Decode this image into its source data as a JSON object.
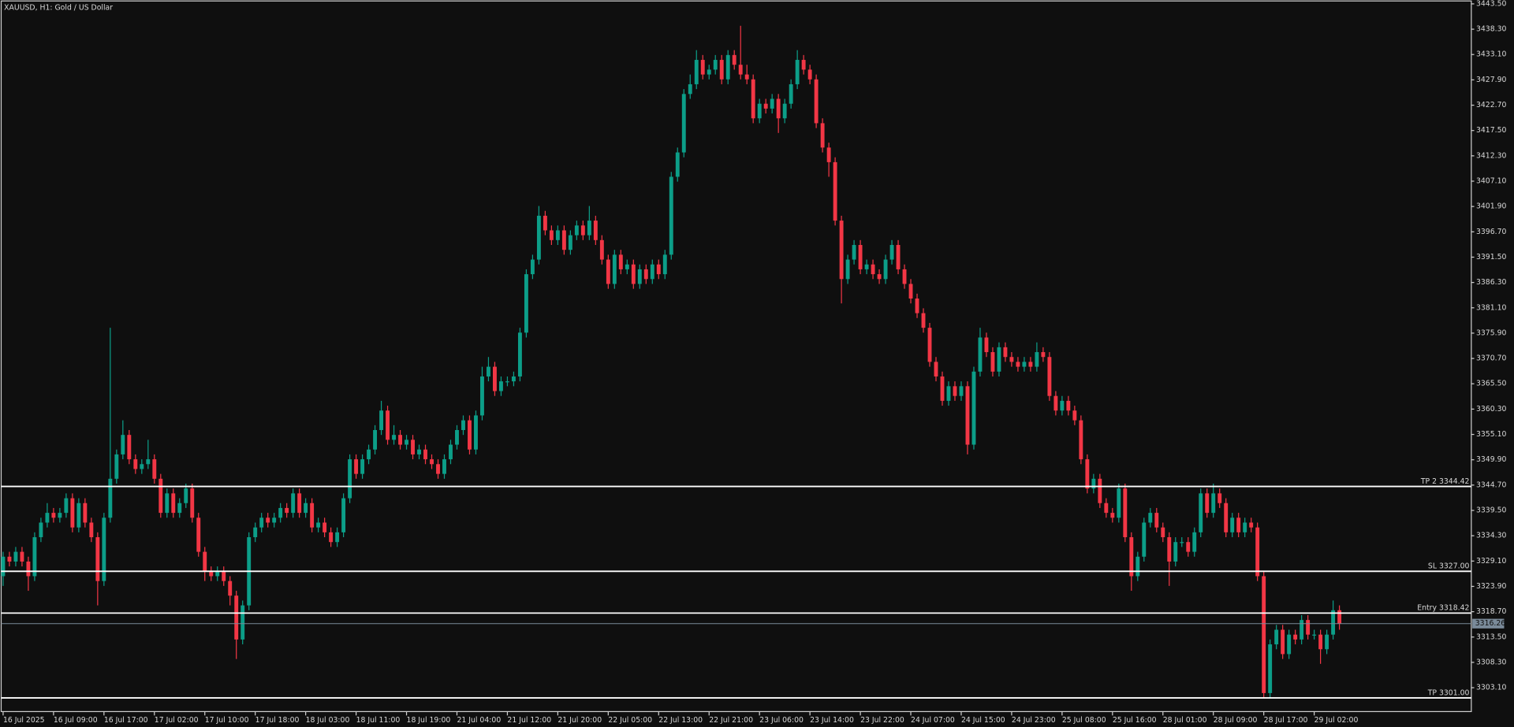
{
  "chart_data": {
    "type": "candlestick",
    "title": "XAUUSD, H1:  Gold / US Dollar",
    "up_color": "#0c9e88",
    "down_color": "#f23645",
    "level_color": "#ffffff",
    "last_color": "#7a8a99",
    "ylim": [
      3298.0,
      3443.9
    ],
    "yticks": [
      {
        "value": 3443.5,
        "label": "3443.50"
      },
      {
        "value": 3438.3,
        "label": "3438.30"
      },
      {
        "value": 3433.1,
        "label": "3433.10"
      },
      {
        "value": 3427.9,
        "label": "3427.90"
      },
      {
        "value": 3422.7,
        "label": "3422.70"
      },
      {
        "value": 3417.5,
        "label": "3417.50"
      },
      {
        "value": 3412.3,
        "label": "3412.30"
      },
      {
        "value": 3407.1,
        "label": "3407.10"
      },
      {
        "value": 3401.9,
        "label": "3401.90"
      },
      {
        "value": 3396.7,
        "label": "3396.70"
      },
      {
        "value": 3391.5,
        "label": "3391.50"
      },
      {
        "value": 3386.3,
        "label": "3386.30"
      },
      {
        "value": 3381.1,
        "label": "3381.10"
      },
      {
        "value": 3375.9,
        "label": "3375.90"
      },
      {
        "value": 3370.7,
        "label": "3370.70"
      },
      {
        "value": 3365.5,
        "label": "3365.50"
      },
      {
        "value": 3360.3,
        "label": "3360.30"
      },
      {
        "value": 3355.1,
        "label": "3355.10"
      },
      {
        "value": 3349.9,
        "label": "3349.90"
      },
      {
        "value": 3344.7,
        "label": "3344.70"
      },
      {
        "value": 3339.5,
        "label": "3339.50"
      },
      {
        "value": 3334.3,
        "label": "3334.30"
      },
      {
        "value": 3329.1,
        "label": "3329.10"
      },
      {
        "value": 3323.9,
        "label": "3323.90"
      },
      {
        "value": 3318.7,
        "label": "3318.70"
      },
      {
        "value": 3313.5,
        "label": "3313.50"
      },
      {
        "value": 3308.3,
        "label": "3308.30"
      },
      {
        "value": 3303.1,
        "label": "3303.10"
      }
    ],
    "levels": [
      {
        "label": "TP 2 3344.42",
        "value": 3344.42
      },
      {
        "label": "SL 3327.00",
        "value": 3327.0
      },
      {
        "label": "Entry 3318.42",
        "value": 3318.42
      },
      {
        "label": "TP 3301.00",
        "value": 3301.0
      }
    ],
    "last_price": 3316.26,
    "categories": [
      "16 Jul 2025",
      null,
      null,
      null,
      null,
      null,
      null,
      null,
      "16 Jul 09:00",
      null,
      null,
      null,
      null,
      null,
      null,
      null,
      "16 Jul 17:00",
      null,
      null,
      null,
      null,
      null,
      null,
      null,
      "17 Jul 02:00",
      null,
      null,
      null,
      null,
      null,
      null,
      null,
      "17 Jul 10:00",
      null,
      null,
      null,
      null,
      null,
      null,
      null,
      "17 Jul 18:00",
      null,
      null,
      null,
      null,
      null,
      null,
      null,
      "18 Jul 03:00",
      null,
      null,
      null,
      null,
      null,
      null,
      null,
      "18 Jul 11:00",
      null,
      null,
      null,
      null,
      null,
      null,
      null,
      "18 Jul 19:00",
      null,
      null,
      null,
      null,
      null,
      null,
      null,
      "21 Jul 04:00",
      null,
      null,
      null,
      null,
      null,
      null,
      null,
      "21 Jul 12:00",
      null,
      null,
      null,
      null,
      null,
      null,
      null,
      "21 Jul 20:00",
      null,
      null,
      null,
      null,
      null,
      null,
      null,
      "22 Jul 05:00",
      null,
      null,
      null,
      null,
      null,
      null,
      null,
      "22 Jul 13:00",
      null,
      null,
      null,
      null,
      null,
      null,
      null,
      "22 Jul 21:00",
      null,
      null,
      null,
      null,
      null,
      null,
      null,
      "23 Jul 06:00",
      null,
      null,
      null,
      null,
      null,
      null,
      null,
      "23 Jul 14:00",
      null,
      null,
      null,
      null,
      null,
      null,
      null,
      "23 Jul 22:00",
      null,
      null,
      null,
      null,
      null,
      null,
      null,
      "24 Jul 07:00",
      null,
      null,
      null,
      null,
      null,
      null,
      null,
      "24 Jul 15:00",
      null,
      null,
      null,
      null,
      null,
      null,
      null,
      "24 Jul 23:00",
      null,
      null,
      null,
      null,
      null,
      null,
      null,
      "25 Jul 08:00",
      null,
      null,
      null,
      null,
      null,
      null,
      null,
      "25 Jul 16:00",
      null,
      null,
      null,
      null,
      null,
      null,
      null,
      "28 Jul 01:00",
      null,
      null,
      null,
      null,
      null,
      null,
      null,
      "28 Jul 09:00",
      null,
      null,
      null,
      null,
      null,
      null,
      null,
      "28 Jul 17:00",
      null,
      null,
      null,
      null,
      null,
      null,
      null,
      "29 Jul 02:00",
      null,
      null,
      null,
      null
    ],
    "open": [
      3326,
      3330,
      3329,
      3331,
      3329,
      3326,
      3334,
      3337,
      3339,
      3338,
      3339,
      3342,
      3336,
      3341,
      3337,
      3334,
      3325,
      3338,
      3346,
      3351,
      3355,
      3350,
      3348,
      3349,
      3350,
      3346,
      3339,
      3343,
      3339,
      3341,
      3344,
      3338,
      3331,
      3327,
      3326,
      3327,
      3325,
      3322,
      3313,
      3320,
      3334,
      3336,
      3338,
      3337,
      3338,
      3340,
      3339,
      3343,
      3339,
      3341,
      3336,
      3337,
      3335,
      3333,
      3335,
      3342,
      3350,
      3347,
      3350,
      3352,
      3356,
      3360,
      3354,
      3355,
      3353,
      3354,
      3351,
      3352,
      3350,
      3349,
      3347,
      3350,
      3353,
      3356,
      3358,
      3352,
      3359,
      3367,
      3369,
      3364,
      3366,
      3366,
      3367,
      3376,
      3388,
      3391,
      3400,
      3397,
      3395,
      3397,
      3393,
      3396,
      3398,
      3396,
      3399,
      3395,
      3391,
      3386,
      3392,
      3389,
      3390,
      3386,
      3389,
      3387,
      3390,
      3388,
      3392,
      3408,
      3413,
      3425,
      3427,
      3432,
      3429,
      3430,
      3432,
      3428,
      3433,
      3431,
      3429,
      3428,
      3420,
      3423,
      3422,
      3424,
      3420,
      3423,
      3427,
      3432,
      3430,
      3428,
      3419,
      3414,
      3411,
      3399,
      3387,
      3391,
      3394,
      3389,
      3390,
      3388,
      3387,
      3391,
      3394,
      3389,
      3386,
      3383,
      3380,
      3377,
      3370,
      3367,
      3362,
      3365,
      3363,
      3365,
      3353,
      3368,
      3375,
      3372,
      3368,
      3373,
      3371,
      3370,
      3369,
      3370,
      3369,
      3372,
      3371,
      3363,
      3360,
      3362,
      3360,
      3358,
      3350,
      3344,
      3346,
      3341,
      3339,
      3338,
      3344,
      3334,
      3326,
      3330,
      3337,
      3339,
      3336,
      3334,
      3329,
      3333,
      3333,
      3331,
      3335,
      3343,
      3339,
      3343,
      3341,
      3335,
      3338,
      3335,
      3337,
      3336,
      3326,
      3302,
      3312,
      3315,
      3310,
      3314,
      3313,
      3317,
      3314,
      3314,
      3311,
      3314,
      3319
    ],
    "high": [
      3331,
      3331,
      3332,
      3332,
      3330,
      3335,
      3338,
      3341,
      3340,
      3340,
      3343,
      3343,
      3342,
      3342,
      3338,
      3335,
      3339,
      3377,
      3352,
      3358,
      3356,
      3351,
      3350,
      3354,
      3351,
      3347,
      3344,
      3344,
      3342,
      3345,
      3345,
      3339,
      3332,
      3328,
      3328,
      3328,
      3326,
      3323,
      3321,
      3335,
      3337,
      3339,
      3339,
      3339,
      3341,
      3341,
      3344,
      3344,
      3342,
      3342,
      3338,
      3338,
      3336,
      3336,
      3343,
      3351,
      3351,
      3351,
      3353,
      3357,
      3362,
      3361,
      3357,
      3356,
      3355,
      3355,
      3353,
      3353,
      3351,
      3350,
      3351,
      3354,
      3357,
      3359,
      3359,
      3360,
      3369,
      3371,
      3370,
      3367,
      3367,
      3368,
      3377,
      3389,
      3392,
      3402,
      3401,
      3398,
      3398,
      3398,
      3397,
      3399,
      3399,
      3402,
      3400,
      3396,
      3392,
      3393,
      3393,
      3391,
      3391,
      3390,
      3390,
      3391,
      3391,
      3393,
      3409,
      3414,
      3426,
      3429,
      3434,
      3433,
      3431,
      3433,
      3433,
      3434,
      3434,
      3439,
      3431,
      3429,
      3424,
      3424,
      3425,
      3425,
      3424,
      3428,
      3434,
      3433,
      3431,
      3429,
      3420,
      3415,
      3412,
      3400,
      3392,
      3395,
      3395,
      3391,
      3391,
      3389,
      3392,
      3395,
      3395,
      3390,
      3387,
      3384,
      3381,
      3378,
      3371,
      3368,
      3366,
      3366,
      3366,
      3366,
      3369,
      3377,
      3376,
      3373,
      3374,
      3374,
      3372,
      3371,
      3371,
      3371,
      3374,
      3373,
      3372,
      3364,
      3363,
      3363,
      3361,
      3359,
      3351,
      3347,
      3347,
      3342,
      3340,
      3345,
      3345,
      3335,
      3331,
      3338,
      3340,
      3340,
      3337,
      3335,
      3334,
      3334,
      3334,
      3336,
      3344,
      3344,
      3345,
      3344,
      3342,
      3339,
      3339,
      3338,
      3338,
      3337,
      3327,
      3313,
      3316,
      3316,
      3315,
      3315,
      3318,
      3318,
      3315,
      3315,
      3315,
      3321,
      3320
    ],
    "low": [
      3324,
      3328,
      3328,
      3328,
      3323,
      3325,
      3333,
      3336,
      3337,
      3337,
      3338,
      3335,
      3335,
      3336,
      3333,
      3320,
      3324,
      3337,
      3345,
      3350,
      3349,
      3347,
      3347,
      3348,
      3345,
      3338,
      3338,
      3338,
      3338,
      3340,
      3337,
      3330,
      3325,
      3325,
      3325,
      3324,
      3320,
      3309,
      3312,
      3319,
      3333,
      3335,
      3336,
      3336,
      3337,
      3338,
      3338,
      3338,
      3338,
      3335,
      3335,
      3334,
      3332,
      3332,
      3334,
      3341,
      3346,
      3346,
      3349,
      3351,
      3355,
      3353,
      3353,
      3352,
      3352,
      3350,
      3350,
      3349,
      3348,
      3346,
      3346,
      3349,
      3352,
      3355,
      3351,
      3351,
      3358,
      3366,
      3363,
      3363,
      3365,
      3365,
      3366,
      3375,
      3387,
      3390,
      3396,
      3394,
      3394,
      3392,
      3392,
      3395,
      3395,
      3395,
      3394,
      3390,
      3385,
      3385,
      3388,
      3388,
      3385,
      3385,
      3386,
      3386,
      3387,
      3387,
      3391,
      3407,
      3412,
      3424,
      3426,
      3428,
      3428,
      3429,
      3427,
      3427,
      3430,
      3428,
      3427,
      3419,
      3419,
      3421,
      3421,
      3417,
      3419,
      3422,
      3426,
      3429,
      3427,
      3418,
      3413,
      3408,
      3398,
      3382,
      3386,
      3390,
      3388,
      3388,
      3387,
      3386,
      3386,
      3390,
      3388,
      3385,
      3382,
      3379,
      3376,
      3369,
      3366,
      3361,
      3361,
      3362,
      3362,
      3351,
      3352,
      3367,
      3371,
      3367,
      3367,
      3370,
      3369,
      3368,
      3368,
      3368,
      3368,
      3370,
      3362,
      3359,
      3359,
      3359,
      3357,
      3349,
      3343,
      3343,
      3340,
      3338,
      3337,
      3337,
      3333,
      3323,
      3325,
      3329,
      3336,
      3335,
      3333,
      3324,
      3328,
      3332,
      3330,
      3330,
      3334,
      3338,
      3338,
      3340,
      3334,
      3334,
      3334,
      3334,
      3335,
      3325,
      3301,
      3301,
      3311,
      3309,
      3309,
      3312,
      3312,
      3313,
      3313,
      3308,
      3310,
      3313,
      3315
    ],
    "close": [
      3330,
      3329,
      3331,
      3329,
      3326,
      3334,
      3337,
      3339,
      3338,
      3339,
      3342,
      3336,
      3341,
      3337,
      3334,
      3325,
      3338,
      3346,
      3351,
      3355,
      3350,
      3348,
      3349,
      3350,
      3346,
      3339,
      3343,
      3339,
      3341,
      3344,
      3338,
      3331,
      3327,
      3326,
      3327,
      3325,
      3322,
      3313,
      3320,
      3334,
      3336,
      3338,
      3337,
      3338,
      3340,
      3339,
      3343,
      3339,
      3341,
      3336,
      3337,
      3335,
      3333,
      3335,
      3342,
      3350,
      3347,
      3350,
      3352,
      3356,
      3360,
      3354,
      3355,
      3353,
      3354,
      3351,
      3352,
      3350,
      3349,
      3347,
      3350,
      3353,
      3356,
      3358,
      3352,
      3359,
      3367,
      3369,
      3364,
      3366,
      3366,
      3367,
      3376,
      3388,
      3391,
      3400,
      3397,
      3395,
      3397,
      3393,
      3396,
      3398,
      3396,
      3399,
      3395,
      3391,
      3386,
      3392,
      3389,
      3390,
      3386,
      3389,
      3387,
      3390,
      3388,
      3392,
      3408,
      3413,
      3425,
      3427,
      3432,
      3429,
      3430,
      3432,
      3428,
      3433,
      3431,
      3429,
      3428,
      3420,
      3423,
      3422,
      3424,
      3420,
      3423,
      3427,
      3432,
      3430,
      3428,
      3419,
      3414,
      3411,
      3399,
      3387,
      3391,
      3394,
      3389,
      3390,
      3388,
      3387,
      3391,
      3394,
      3389,
      3386,
      3383,
      3380,
      3377,
      3370,
      3367,
      3362,
      3365,
      3363,
      3365,
      3353,
      3368,
      3375,
      3372,
      3368,
      3373,
      3371,
      3370,
      3369,
      3370,
      3369,
      3372,
      3371,
      3363,
      3360,
      3362,
      3360,
      3358,
      3350,
      3344,
      3346,
      3341,
      3339,
      3338,
      3344,
      3334,
      3326,
      3330,
      3337,
      3339,
      3336,
      3334,
      3329,
      3333,
      3333,
      3331,
      3335,
      3343,
      3339,
      3343,
      3341,
      3335,
      3338,
      3335,
      3337,
      3336,
      3326,
      3302,
      3312,
      3315,
      3310,
      3314,
      3313,
      3317,
      3314,
      3314,
      3311,
      3314,
      3319,
      3316.26
    ]
  }
}
